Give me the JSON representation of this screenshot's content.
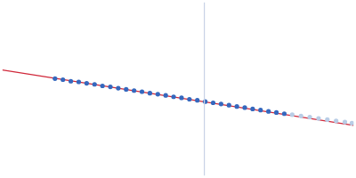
{
  "chart_data": {
    "type": "scatter",
    "xlim": [
      0,
      400
    ],
    "ylim": [
      0,
      200
    ],
    "grid": false,
    "tick_labels": false,
    "series": [
      {
        "type": "line",
        "color": "#c8d2e6",
        "marker": "none",
        "line_style": "solid",
        "x": [
          230,
          230
        ],
        "values": [
          0,
          200
        ]
      },
      {
        "type": "scatter",
        "color": "#b9cde6",
        "marker": "circle",
        "x": [
          330,
          340,
          350,
          360,
          370,
          380,
          390,
          398
        ],
        "values": [
          70.4,
          68.9,
          67.6,
          66.0,
          64.7,
          63.2,
          61.9,
          60.6
        ]
      },
      {
        "type": "scatter",
        "color": "#3568be",
        "marker": "circle",
        "x": [
          60,
          69,
          78,
          87,
          96,
          105,
          114,
          123,
          132,
          141,
          150,
          159,
          168,
          177,
          186,
          195,
          204,
          213,
          222,
          231,
          240,
          249,
          258,
          267,
          276,
          285,
          294,
          303,
          312,
          321
        ],
        "values": [
          112.0,
          110.8,
          109.0,
          108.2,
          106.6,
          105.4,
          103.6,
          102.5,
          101.0,
          99.6,
          98.2,
          96.9,
          95.2,
          94.0,
          92.6,
          91.0,
          89.8,
          88.2,
          87.0,
          85.4,
          84.1,
          82.7,
          81.3,
          79.8,
          78.5,
          77.0,
          75.7,
          74.2,
          72.9,
          71.5
        ]
      },
      {
        "type": "line",
        "color": "#d0283a",
        "marker": "none",
        "line_style": "solid",
        "x": [
          0,
          400
        ],
        "values": [
          122,
          58
        ]
      }
    ]
  }
}
